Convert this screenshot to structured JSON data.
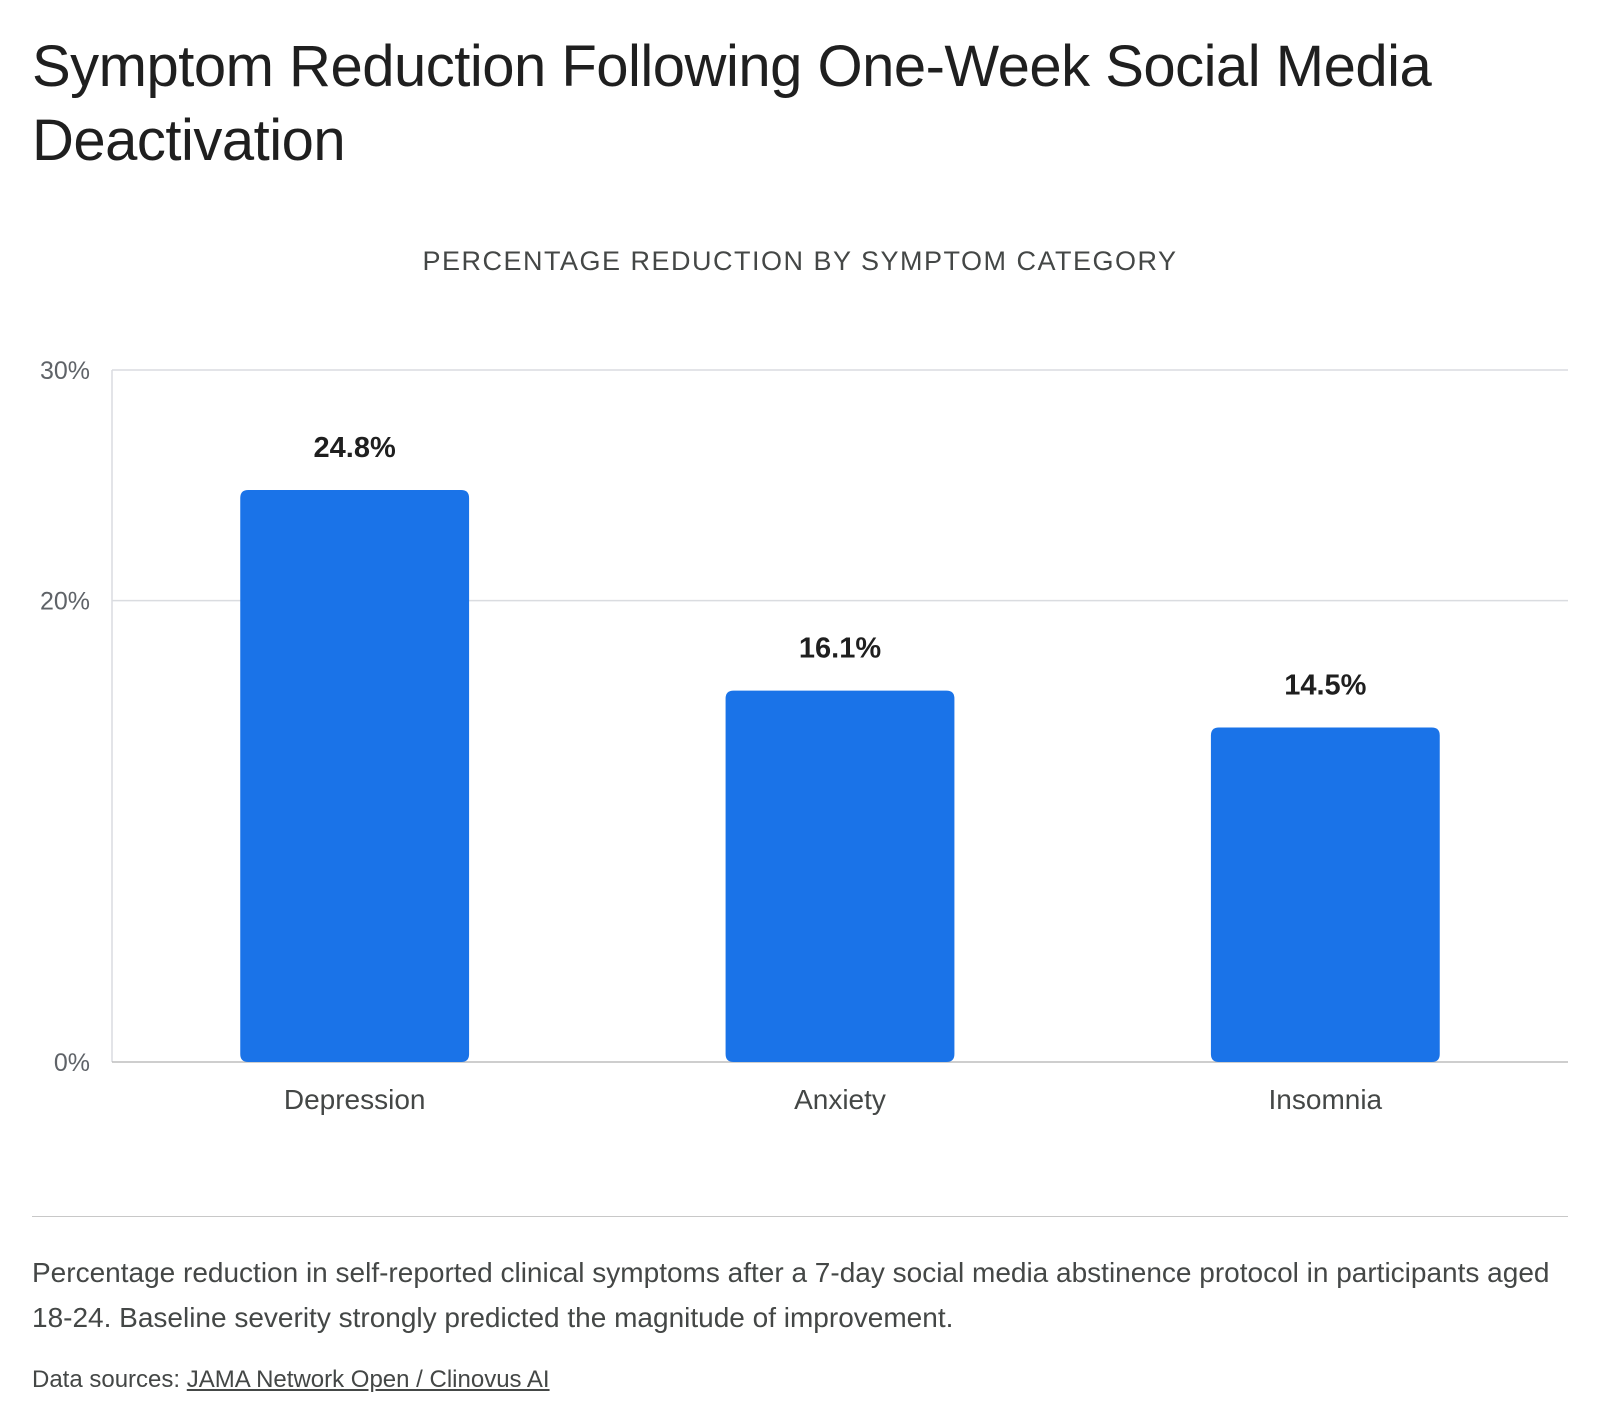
{
  "title": "Symptom Reduction Following One-Week Social Media Deactivation",
  "caption": "Percentage reduction in self-reported clinical symptoms after a 7-day social media abstinence protocol in participants aged 18-24. Baseline severity strongly predicted the magnitude of improvement.",
  "sources": {
    "label": "Data sources:",
    "link_text": "JAMA Network Open / Clinovus AI"
  },
  "colors": {
    "bar": "#1a73e8",
    "grid": "#dadce0",
    "axis": "#bdbdbd"
  },
  "chart_data": {
    "type": "bar",
    "title": "PERCENTAGE REDUCTION BY SYMPTOM CATEGORY",
    "categories": [
      "Depression",
      "Anxiety",
      "Insomnia"
    ],
    "values": [
      24.8,
      16.1,
      14.5
    ],
    "data_labels": [
      "24.8%",
      "16.1%",
      "14.5%"
    ],
    "yticks": [
      0,
      20,
      30
    ],
    "ytick_labels": [
      "0%",
      "20%",
      "30%"
    ],
    "ylim": [
      0,
      30
    ],
    "xlabel": "",
    "ylabel": "",
    "grid": true,
    "legend": "none"
  }
}
